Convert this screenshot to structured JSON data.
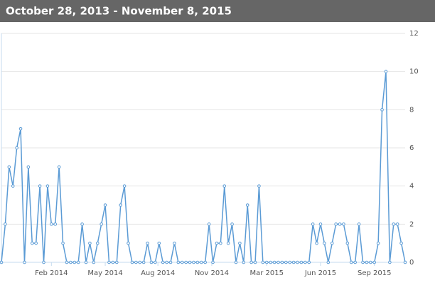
{
  "chart_data": {
    "type": "line",
    "title": "October 28, 2013 - November 8, 2015",
    "values": [
      0,
      2,
      5,
      4,
      6,
      7,
      0,
      5,
      1,
      1,
      4,
      0,
      4,
      2,
      2,
      5,
      1,
      0,
      0,
      0,
      0,
      2,
      0,
      1,
      0,
      1,
      2,
      3,
      0,
      0,
      0,
      3,
      4,
      1,
      0,
      0,
      0,
      0,
      1,
      0,
      0,
      1,
      0,
      0,
      0,
      1,
      0,
      0,
      0,
      0,
      0,
      0,
      0,
      0,
      2,
      0,
      1,
      1,
      4,
      1,
      2,
      0,
      1,
      0,
      3,
      0,
      0,
      4,
      0,
      0,
      0,
      0,
      0,
      0,
      0,
      0,
      0,
      0,
      0,
      0,
      0,
      2,
      1,
      2,
      1,
      0,
      1,
      2,
      2,
      2,
      1,
      0,
      0,
      2,
      0,
      0,
      0,
      0,
      1,
      8,
      10,
      0,
      2,
      2,
      1,
      0
    ],
    "xlim": [
      0,
      105
    ],
    "xticks": [
      {
        "value": 13,
        "label": "Feb 2014"
      },
      {
        "value": 27,
        "label": "May 2014"
      },
      {
        "value": 40.7,
        "label": "Aug 2014"
      },
      {
        "value": 54.7,
        "label": "Nov 2014"
      },
      {
        "value": 69,
        "label": "Mar 2015"
      },
      {
        "value": 83,
        "label": "Jun 2015"
      },
      {
        "value": 97,
        "label": "Sep 2015"
      }
    ],
    "ylim": [
      0,
      12
    ],
    "yticks": [
      0,
      2,
      4,
      6,
      8,
      10,
      12
    ],
    "grid": true,
    "color": "#5b9bd5"
  }
}
